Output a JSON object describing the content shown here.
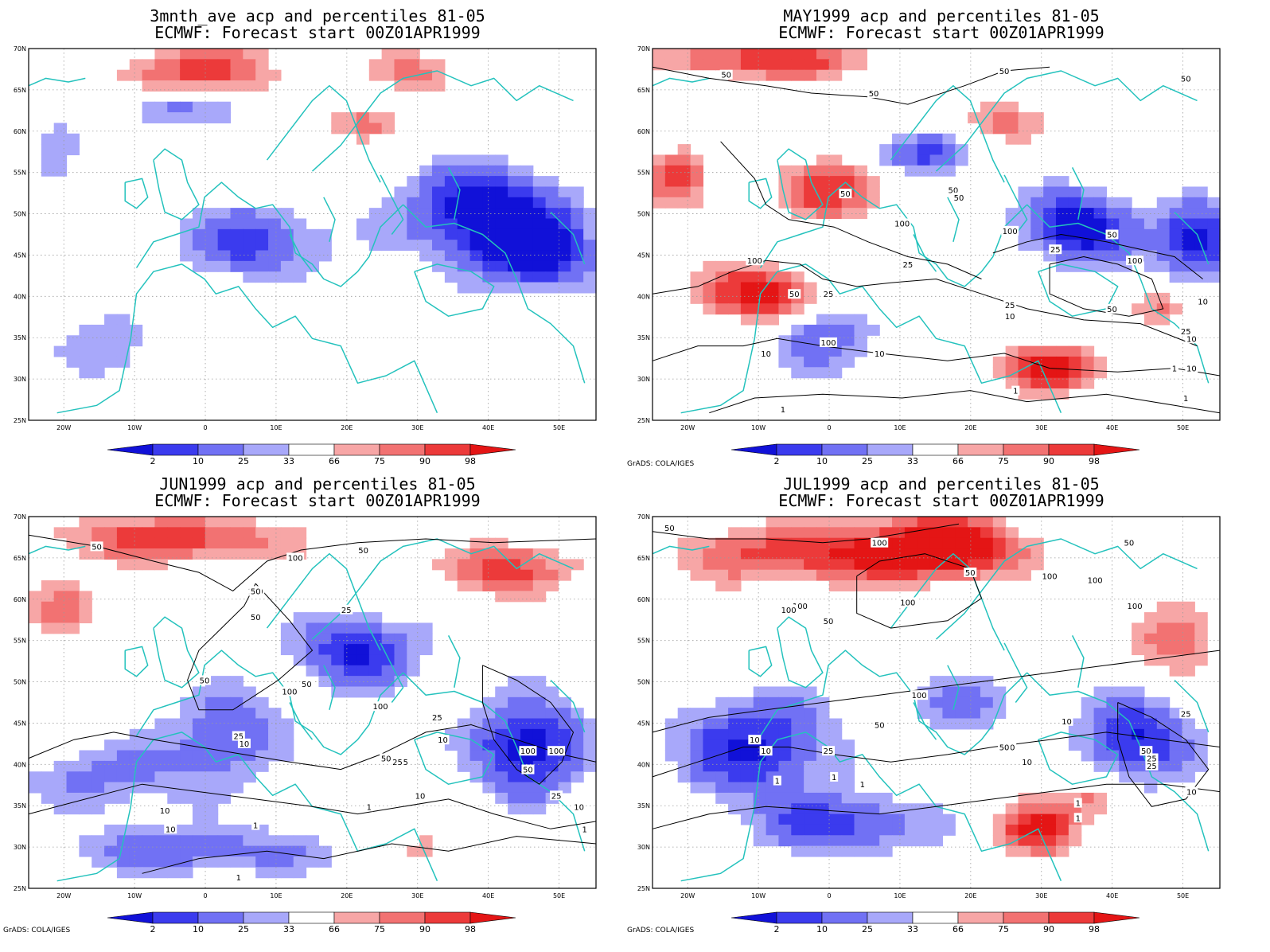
{
  "panels": [
    {
      "title_line1": "3mnth_ave acp and percentiles 81-05",
      "title_line2": "ECMWF: Forecast start 00Z01APR1999",
      "credit": "",
      "contour_labels": []
    },
    {
      "title_line1": "MAY1999 acp and percentiles 81-05",
      "title_line2": "ECMWF: Forecast start 00Z01APR1999",
      "credit": "GrADS: COLA/IGES",
      "contour_labels": [
        "50",
        "50",
        "50",
        "50",
        "50",
        "50",
        "100",
        "100",
        "100",
        "50",
        "25",
        "100",
        "25",
        "25",
        "10",
        "10",
        "10",
        "10",
        "1",
        "1",
        "1",
        "50",
        "100",
        "50",
        "25",
        "50",
        "25",
        "10",
        "10",
        "1"
      ]
    },
    {
      "title_line1": "JUN1999 acp and percentiles 81-05",
      "title_line2": "ECMWF: Forecast start 00Z01APR1999",
      "credit": "GrADS: COLA/IGES",
      "contour_labels": [
        "50",
        "100",
        "50",
        "100",
        "50",
        "25",
        "100",
        "50",
        "50",
        "100",
        "50",
        "100",
        "25",
        "10",
        "25",
        "50",
        "25",
        "10",
        "100",
        "50",
        "25",
        "10",
        "10",
        "10",
        "1",
        "1",
        "10",
        "1",
        "50",
        "25",
        "1"
      ]
    },
    {
      "title_line1": "JUL1999 acp and percentiles 81-05",
      "title_line2": "ECMWF: Forecast start 00Z01APR1999",
      "credit": "GrADS: COLA/IGES",
      "contour_labels": [
        "50",
        "100",
        "50",
        "50",
        "100",
        "100",
        "100",
        "100",
        "100",
        "100",
        "50",
        "25",
        "100",
        "10",
        "50",
        "10",
        "50",
        "25",
        "10",
        "25",
        "1",
        "1",
        "1",
        "1",
        "50",
        "25",
        "10",
        "10",
        "1",
        "50",
        "25"
      ]
    }
  ],
  "map_axes": {
    "lat_ticks": [
      "70N",
      "65N",
      "60N",
      "55N",
      "50N",
      "45N",
      "40N",
      "35N",
      "30N",
      "25N"
    ],
    "lon_ticks": [
      "20W",
      "10W",
      "0",
      "10E",
      "20E",
      "30E",
      "40E",
      "50E"
    ]
  },
  "colorbar": {
    "labels": [
      "2",
      "10",
      "25",
      "33",
      "66",
      "75",
      "90",
      "98"
    ],
    "colors": [
      "#1111d8",
      "#3b3bee",
      "#7171f4",
      "#a8a8fa",
      "#ffffff",
      "#f7a6a6",
      "#f27272",
      "#ec3a3a",
      "#e41515"
    ]
  }
}
